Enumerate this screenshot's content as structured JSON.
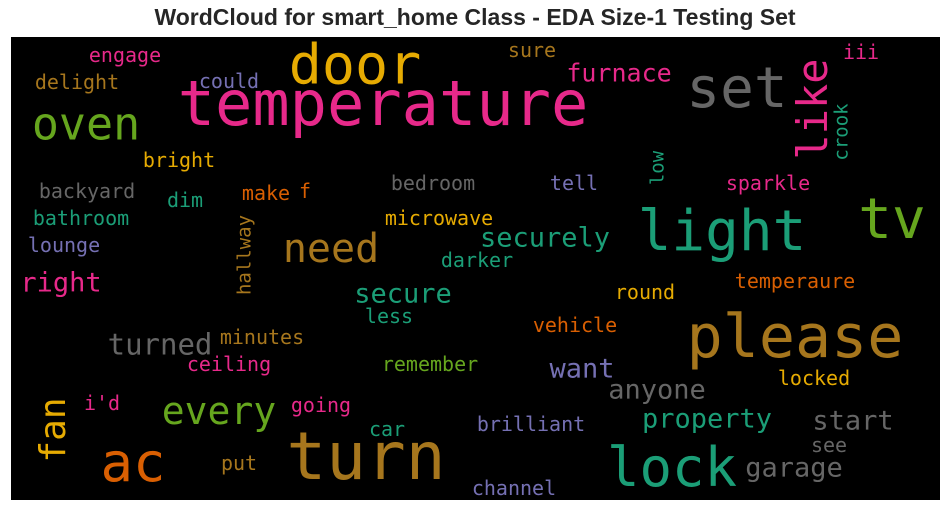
{
  "title": "WordCloud for smart_home Class - EDA Size-1 Testing Set",
  "chart_data": {
    "type": "wordcloud",
    "background": "#000000",
    "palette": [
      "#e7298a",
      "#66a61e",
      "#e6ab02",
      "#a6761d",
      "#666666",
      "#1b9e77",
      "#d95f02",
      "#7570b3"
    ],
    "words": [
      {
        "text": "temperature",
        "color": "#e7298a",
        "orientation": "horizontal"
      },
      {
        "text": "turn",
        "color": "#a6761d",
        "orientation": "horizontal"
      },
      {
        "text": "please",
        "color": "#a6761d",
        "orientation": "horizontal"
      },
      {
        "text": "light",
        "color": "#1b9e77",
        "orientation": "horizontal"
      },
      {
        "text": "door",
        "color": "#e6ab02",
        "orientation": "horizontal"
      },
      {
        "text": "lock",
        "color": "#1b9e77",
        "orientation": "horizontal"
      },
      {
        "text": "set",
        "color": "#666666",
        "orientation": "horizontal"
      },
      {
        "text": "tv",
        "color": "#66a61e",
        "orientation": "horizontal"
      },
      {
        "text": "ac",
        "color": "#d95f02",
        "orientation": "horizontal"
      },
      {
        "text": "oven",
        "color": "#66a61e",
        "orientation": "horizontal"
      },
      {
        "text": "every",
        "color": "#66a61e",
        "orientation": "horizontal"
      },
      {
        "text": "need",
        "color": "#a6761d",
        "orientation": "horizontal"
      },
      {
        "text": "like",
        "color": "#e7298a",
        "orientation": "vertical"
      },
      {
        "text": "fan",
        "color": "#e6ab02",
        "orientation": "vertical"
      },
      {
        "text": "garage",
        "color": "#666666",
        "orientation": "horizontal"
      },
      {
        "text": "securely",
        "color": "#1b9e77",
        "orientation": "horizontal"
      },
      {
        "text": "secure",
        "color": "#1b9e77",
        "orientation": "horizontal"
      },
      {
        "text": "turned",
        "color": "#666666",
        "orientation": "horizontal"
      },
      {
        "text": "property",
        "color": "#1b9e77",
        "orientation": "horizontal"
      },
      {
        "text": "start",
        "color": "#666666",
        "orientation": "horizontal"
      },
      {
        "text": "anyone",
        "color": "#666666",
        "orientation": "horizontal"
      },
      {
        "text": "want",
        "color": "#7570b3",
        "orientation": "horizontal"
      },
      {
        "text": "furnace",
        "color": "#e7298a",
        "orientation": "horizontal"
      },
      {
        "text": "right",
        "color": "#e7298a",
        "orientation": "horizontal"
      },
      {
        "text": "microwave",
        "color": "#e6ab02",
        "orientation": "horizontal"
      },
      {
        "text": "temperaure",
        "color": "#d95f02",
        "orientation": "horizontal"
      },
      {
        "text": "brilliant",
        "color": "#7570b3",
        "orientation": "horizontal"
      },
      {
        "text": "engage",
        "color": "#e7298a",
        "orientation": "horizontal"
      },
      {
        "text": "delight",
        "color": "#a6761d",
        "orientation": "horizontal"
      },
      {
        "text": "could",
        "color": "#7570b3",
        "orientation": "horizontal"
      },
      {
        "text": "sure",
        "color": "#a6761d",
        "orientation": "horizontal"
      },
      {
        "text": "iii",
        "color": "#e7298a",
        "orientation": "horizontal"
      },
      {
        "text": "crook",
        "color": "#1b9e77",
        "orientation": "vertical"
      },
      {
        "text": "low",
        "color": "#1b9e77",
        "orientation": "vertical"
      },
      {
        "text": "bright",
        "color": "#e6ab02",
        "orientation": "horizontal"
      },
      {
        "text": "backyard",
        "color": "#666666",
        "orientation": "horizontal"
      },
      {
        "text": "dim",
        "color": "#1b9e77",
        "orientation": "horizontal"
      },
      {
        "text": "make",
        "color": "#d95f02",
        "orientation": "horizontal"
      },
      {
        "text": "f",
        "color": "#d95f02",
        "orientation": "horizontal"
      },
      {
        "text": "bedroom",
        "color": "#666666",
        "orientation": "horizontal"
      },
      {
        "text": "tell",
        "color": "#7570b3",
        "orientation": "horizontal"
      },
      {
        "text": "sparkle",
        "color": "#e7298a",
        "orientation": "horizontal"
      },
      {
        "text": "bathroom",
        "color": "#1b9e77",
        "orientation": "horizontal"
      },
      {
        "text": "hallway",
        "color": "#a6761d",
        "orientation": "vertical"
      },
      {
        "text": "lounge",
        "color": "#7570b3",
        "orientation": "horizontal"
      },
      {
        "text": "darker",
        "color": "#1b9e77",
        "orientation": "horizontal"
      },
      {
        "text": "round",
        "color": "#e6ab02",
        "orientation": "horizontal"
      },
      {
        "text": "less",
        "color": "#1b9e77",
        "orientation": "horizontal"
      },
      {
        "text": "minutes",
        "color": "#a6761d",
        "orientation": "horizontal"
      },
      {
        "text": "vehicle",
        "color": "#d95f02",
        "orientation": "horizontal"
      },
      {
        "text": "ceiling",
        "color": "#e7298a",
        "orientation": "horizontal"
      },
      {
        "text": "remember",
        "color": "#66a61e",
        "orientation": "horizontal"
      },
      {
        "text": "locked",
        "color": "#e6ab02",
        "orientation": "horizontal"
      },
      {
        "text": "i'd",
        "color": "#e7298a",
        "orientation": "horizontal"
      },
      {
        "text": "going",
        "color": "#e7298a",
        "orientation": "horizontal"
      },
      {
        "text": "car",
        "color": "#1b9e77",
        "orientation": "horizontal"
      },
      {
        "text": "see",
        "color": "#666666",
        "orientation": "horizontal"
      },
      {
        "text": "put",
        "color": "#a6761d",
        "orientation": "horizontal"
      },
      {
        "text": "channel",
        "color": "#7570b3",
        "orientation": "horizontal"
      }
    ]
  }
}
